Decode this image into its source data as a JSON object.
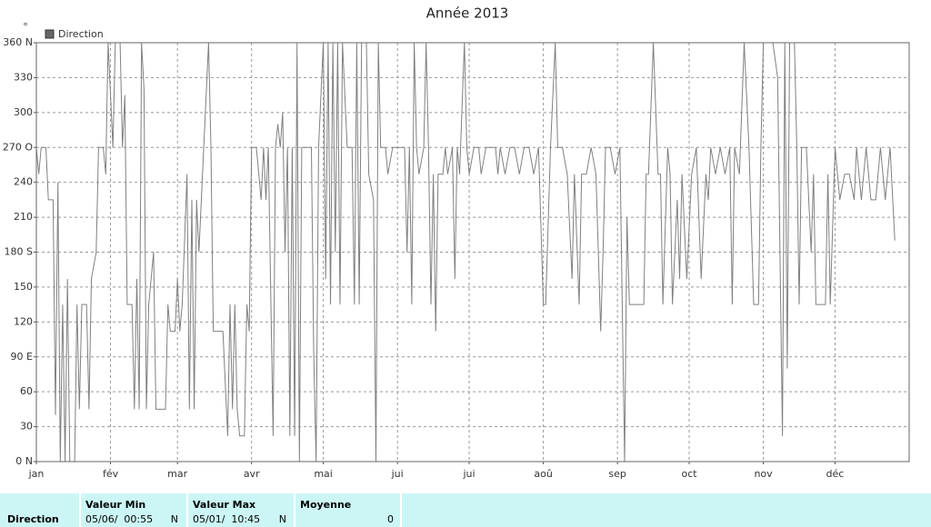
{
  "chart_data": {
    "type": "line",
    "title": "Année 2013",
    "y_label": "°",
    "x": [
      0,
      1,
      2,
      4,
      5,
      7,
      8,
      9,
      10,
      11,
      12,
      13,
      14,
      16,
      17,
      18,
      19,
      21,
      22,
      23,
      25,
      26,
      28,
      29,
      30,
      32,
      33,
      35,
      36,
      37,
      38,
      40,
      41,
      42,
      43,
      44,
      45,
      46,
      47,
      49,
      50,
      52,
      54,
      55,
      56,
      58,
      59,
      60,
      61,
      63,
      64,
      65,
      66,
      67,
      68,
      70,
      72,
      73,
      74,
      78,
      80,
      81,
      82,
      83,
      84,
      85,
      87,
      88,
      89,
      90,
      92,
      94,
      95,
      96,
      97,
      99,
      100,
      101,
      102,
      103,
      104,
      105,
      106,
      107,
      108,
      109,
      110,
      111,
      115,
      116,
      117,
      118,
      120,
      121,
      122,
      123,
      124,
      125,
      126,
      127,
      128,
      130,
      132,
      133,
      134,
      135,
      136,
      138,
      139,
      141,
      142,
      143,
      144,
      146,
      147,
      149,
      152,
      154,
      155,
      156,
      157,
      158,
      159,
      160,
      162,
      163,
      164,
      165,
      166,
      167,
      168,
      170,
      171,
      172,
      174,
      175,
      176,
      177,
      179,
      180,
      181,
      183,
      185,
      186,
      188,
      190,
      192,
      193,
      194,
      196,
      198,
      200,
      202,
      204,
      206,
      208,
      210,
      212,
      213,
      215,
      217,
      218,
      220,
      222,
      224,
      225,
      227,
      228,
      230,
      232,
      234,
      236,
      237,
      238,
      240,
      242,
      244,
      246,
      247,
      248,
      250,
      254,
      255,
      256,
      258,
      260,
      261,
      262,
      264,
      265,
      266,
      268,
      269,
      270,
      272,
      274,
      276,
      278,
      280,
      281,
      282,
      284,
      286,
      288,
      290,
      291,
      292,
      294,
      296,
      298,
      300,
      302,
      303,
      304,
      306,
      308,
      310,
      312,
      313,
      314,
      315,
      317,
      318,
      319,
      320,
      322,
      324,
      325,
      326,
      328,
      330,
      331,
      332,
      334,
      336,
      338,
      340,
      342,
      343,
      345,
      347,
      349,
      351,
      353,
      355,
      357,
      359
    ],
    "series": [
      {
        "name": "Direction",
        "color": "#808080",
        "values": [
          270,
          247,
          270,
          270,
          225,
          225,
          40,
          240,
          0,
          135,
          0,
          157,
          0,
          0,
          135,
          45,
          135,
          135,
          45,
          157,
          180,
          270,
          270,
          247,
          360,
          270,
          360,
          360,
          270,
          315,
          135,
          135,
          45,
          157,
          45,
          360,
          320,
          45,
          135,
          180,
          45,
          45,
          45,
          135,
          112,
          112,
          157,
          112,
          135,
          247,
          45,
          225,
          45,
          225,
          180,
          270,
          360,
          270,
          112,
          112,
          22,
          135,
          45,
          135,
          45,
          22,
          22,
          135,
          112,
          270,
          270,
          225,
          270,
          225,
          270,
          22,
          270,
          290,
          270,
          300,
          180,
          270,
          22,
          270,
          22,
          360,
          0,
          270,
          270,
          90,
          0,
          270,
          360,
          157,
          360,
          135,
          360,
          180,
          360,
          135,
          360,
          270,
          270,
          135,
          360,
          135,
          360,
          360,
          247,
          225,
          0,
          360,
          270,
          270,
          247,
          270,
          270,
          270,
          180,
          270,
          135,
          360,
          270,
          247,
          270,
          360,
          270,
          135,
          247,
          112,
          247,
          247,
          270,
          247,
          270,
          157,
          270,
          247,
          360,
          270,
          247,
          270,
          270,
          247,
          270,
          270,
          270,
          247,
          270,
          247,
          270,
          270,
          247,
          270,
          270,
          247,
          270,
          135,
          135,
          270,
          360,
          270,
          270,
          247,
          157,
          247,
          135,
          247,
          247,
          270,
          247,
          112,
          180,
          270,
          270,
          247,
          270,
          0,
          210,
          135,
          135,
          135,
          247,
          247,
          360,
          247,
          247,
          135,
          270,
          247,
          135,
          225,
          157,
          247,
          157,
          247,
          270,
          157,
          247,
          225,
          270,
          247,
          270,
          247,
          270,
          135,
          270,
          247,
          360,
          270,
          135,
          135,
          270,
          360,
          360,
          360,
          330,
          22,
          360,
          80,
          360,
          360,
          270,
          135,
          270,
          270,
          180,
          247,
          135,
          135,
          135,
          247,
          135,
          270,
          225,
          247,
          247,
          225,
          270,
          225,
          270,
          225,
          225,
          270,
          225,
          270,
          190
        ]
      }
    ],
    "xlim": [
      0,
      365
    ],
    "xticks": [
      {
        "value": 0,
        "label": "jan"
      },
      {
        "value": 31,
        "label": "fév"
      },
      {
        "value": 59,
        "label": "mar"
      },
      {
        "value": 90,
        "label": "avr"
      },
      {
        "value": 120,
        "label": "mai"
      },
      {
        "value": 151,
        "label": "jui"
      },
      {
        "value": 181,
        "label": "jui"
      },
      {
        "value": 212,
        "label": "aoû"
      },
      {
        "value": 243,
        "label": "sep"
      },
      {
        "value": 273,
        "label": "oct"
      },
      {
        "value": 304,
        "label": "nov"
      },
      {
        "value": 334,
        "label": "déc"
      }
    ],
    "ylim": [
      0,
      360
    ],
    "yticks": [
      {
        "value": 0,
        "label": "0 N"
      },
      30,
      60,
      {
        "value": 90,
        "label": "90 E"
      },
      120,
      150,
      {
        "value": 180,
        "label": "180 S"
      },
      210,
      240,
      {
        "value": 270,
        "label": "270 O"
      },
      300,
      330,
      {
        "value": 360,
        "label": "360 N"
      }
    ],
    "grid": true
  },
  "footer": {
    "label": "Direction",
    "columns": [
      {
        "header": "Valeur Min",
        "date": "05/06/  00:55",
        "dir": "N"
      },
      {
        "header": "Valeur Max",
        "date": "05/01/  10:45",
        "dir": "N"
      },
      {
        "header": "Moyenne",
        "value": "0"
      }
    ]
  }
}
